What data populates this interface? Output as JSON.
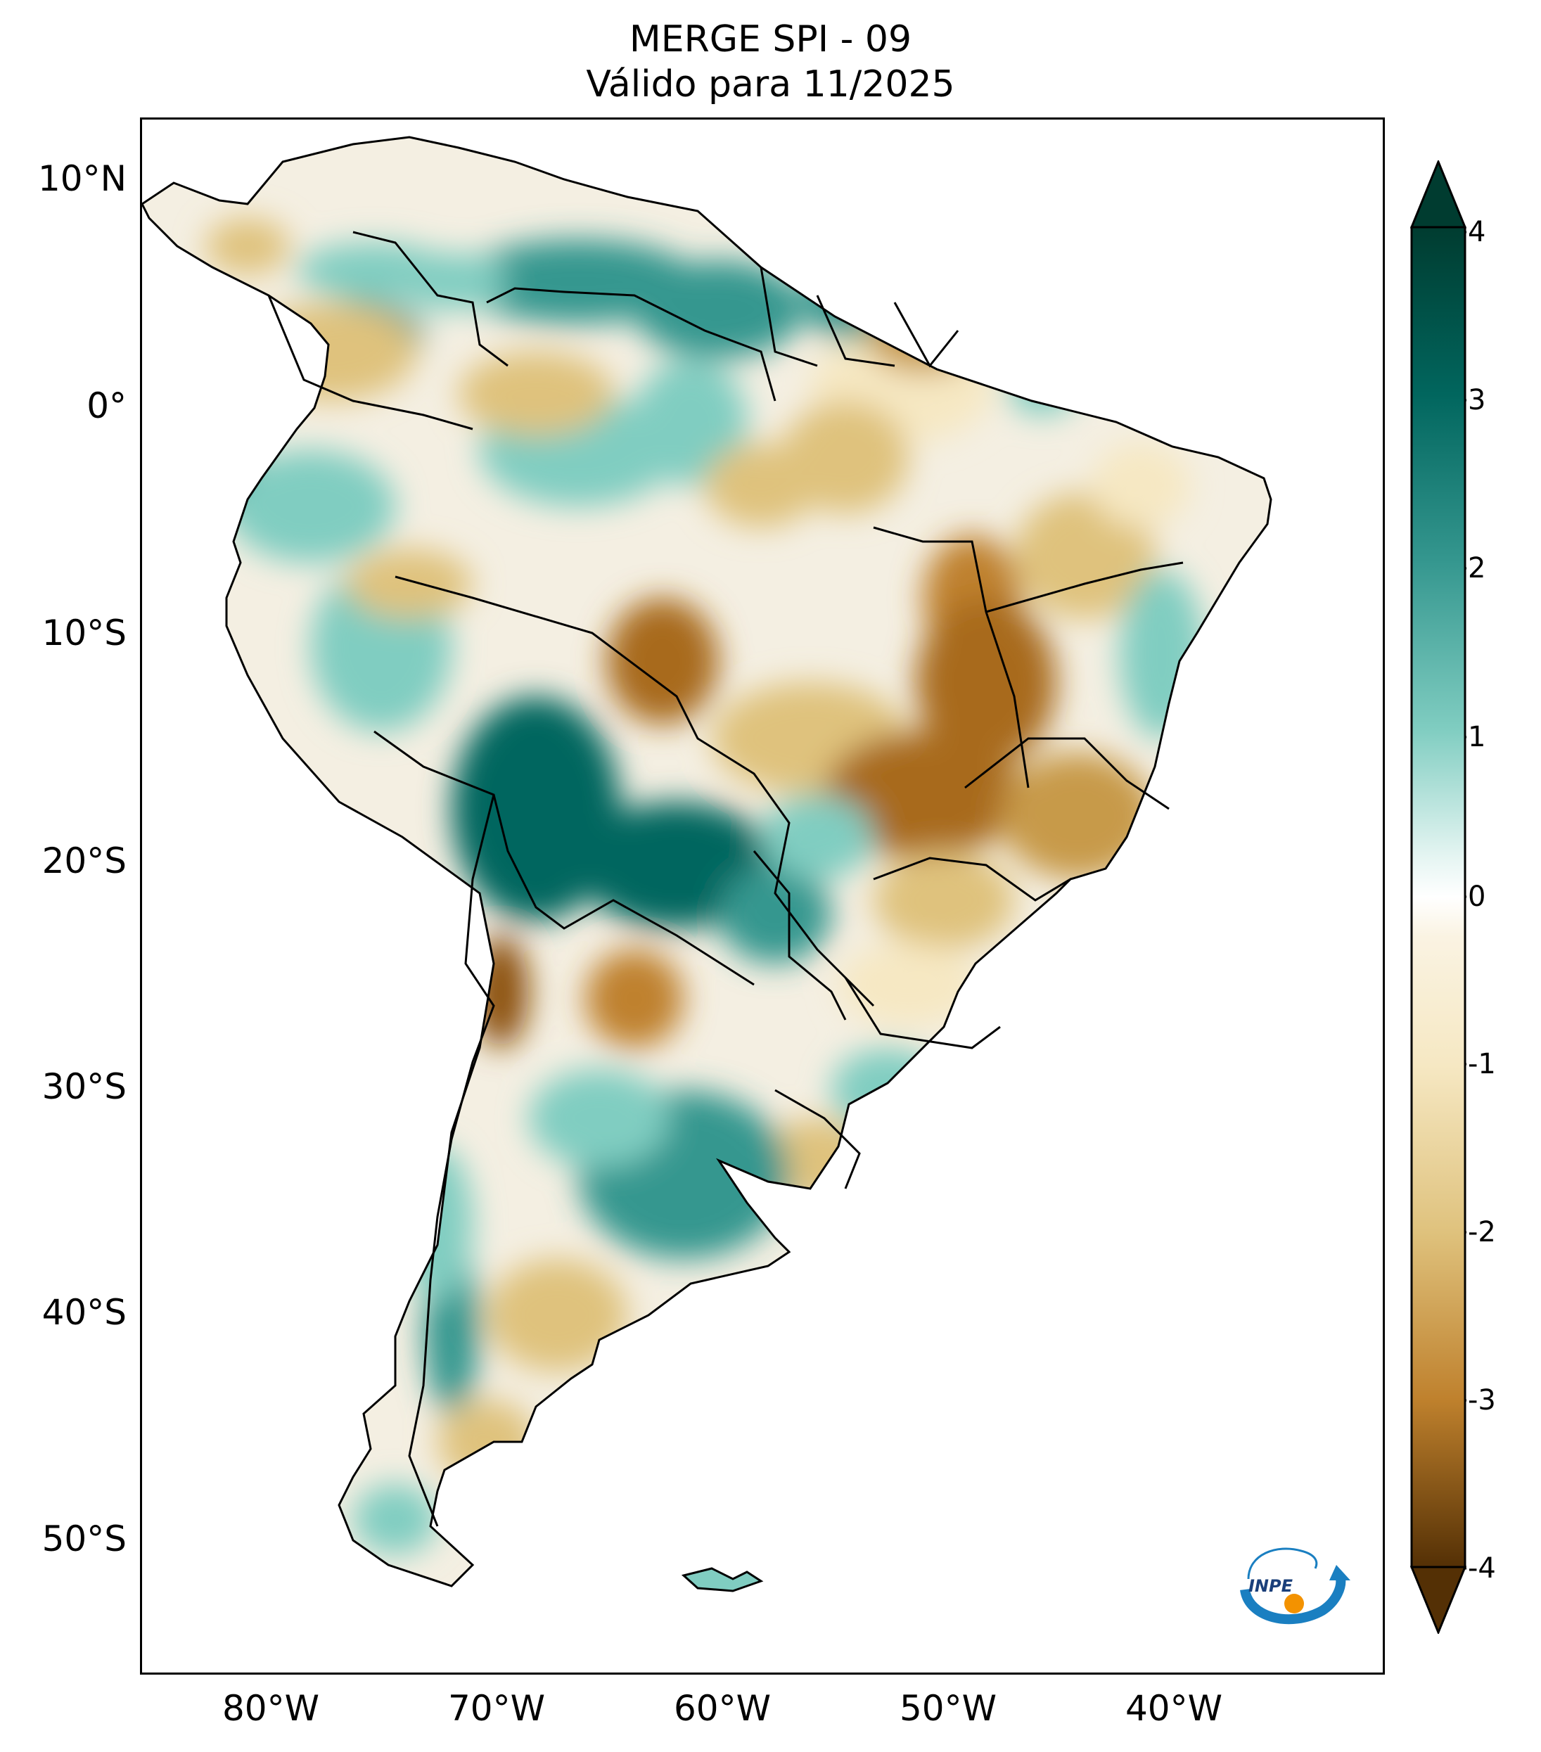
{
  "title": {
    "line1": "MERGE   SPI - 09",
    "line2": "Válido para 11/2025"
  },
  "axes": {
    "lat_labels": [
      "10°N",
      "0°",
      "10°S",
      "20°S",
      "30°S",
      "40°S",
      "50°S"
    ],
    "lon_labels": [
      "80°W",
      "70°W",
      "60°W",
      "50°W",
      "40°W"
    ],
    "lon_range": [
      -85,
      -29.5
    ],
    "lat_range": [
      12.8,
      -56
    ]
  },
  "colorbar": {
    "tick_labels": [
      "4",
      "3",
      "2",
      "1",
      "0",
      "-1",
      "-2",
      "-3",
      "-4"
    ],
    "range": [
      -4,
      4
    ],
    "colors_positive": [
      "#ffffff",
      "#c7eae5",
      "#80cdc1",
      "#35978f",
      "#01665e",
      "#003c30"
    ],
    "colors_negative": [
      "#ffffff",
      "#f6e8c3",
      "#dfc27d",
      "#bf812d",
      "#8c510a",
      "#543005"
    ]
  },
  "logo": {
    "text": "INPE"
  },
  "colors": {
    "border": "#000000",
    "wet": "#35978f",
    "wet_strong": "#01665e",
    "dry": "#dfc27d",
    "dry_strong": "#a86a1e"
  }
}
